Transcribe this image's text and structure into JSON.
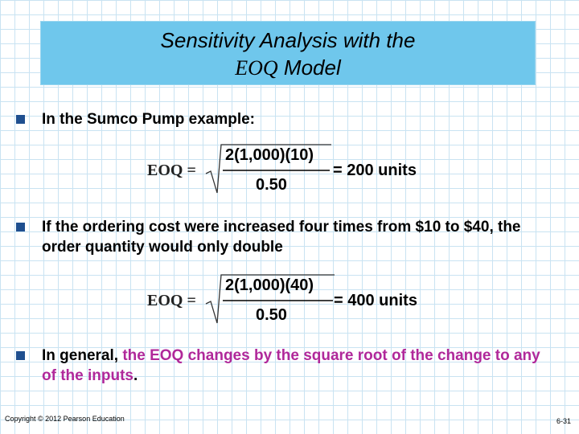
{
  "title": {
    "line1": "Sensitivity Analysis with the",
    "line2_eoq": "EOQ",
    "line2_rest": "Model"
  },
  "bullets": [
    {
      "parts": [
        "In the Sumco Pump example:"
      ]
    },
    {
      "parts": [
        "If the ordering cost were increased four times from $10 to $40, the order quantity would only double"
      ]
    },
    {
      "parts": [
        "In general, ",
        "the EOQ changes by the square root of the change to any of the inputs",
        "."
      ]
    }
  ],
  "formulas": [
    {
      "lhs": "EOQ =",
      "numerator": "2(1,000)(10)",
      "denominator": "0.50",
      "result": "= 200 units"
    },
    {
      "lhs": "EOQ =",
      "numerator": "2(1,000)(40)",
      "denominator": "0.50",
      "result": "= 400 units"
    }
  ],
  "footer": {
    "copyright": "Copyright © 2012 Pearson Education",
    "page": "6-31"
  }
}
